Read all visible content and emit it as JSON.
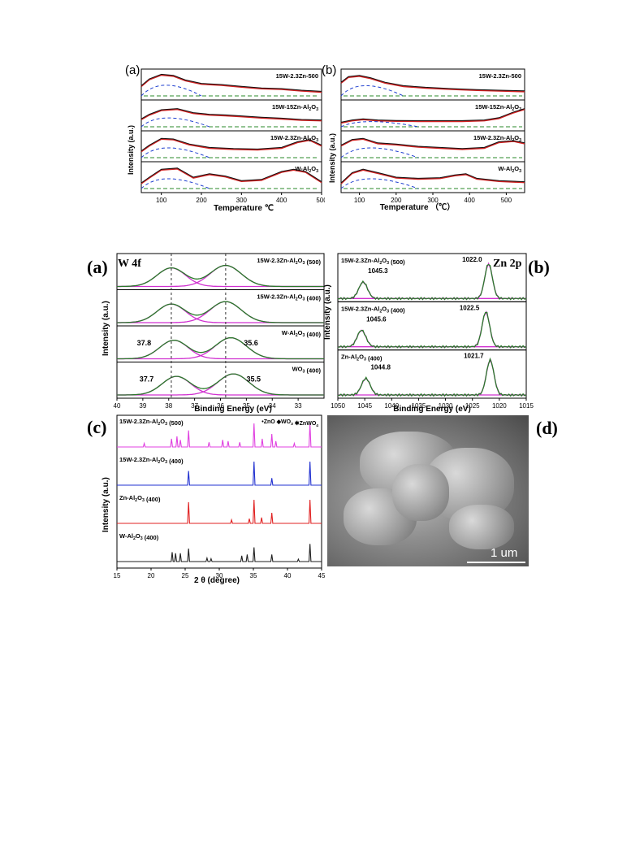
{
  "chart_data": [
    {
      "type": "line",
      "panel": "(a)",
      "xlabel": "Temperature ℃",
      "ylabel": "Intensity (a.u.)",
      "xlim": [
        50,
        500
      ],
      "xticks": [
        "100",
        "200",
        "300",
        "400",
        "500"
      ],
      "series": [
        {
          "name": "15W-2.3Zn-500",
          "x": [
            50,
            70,
            100,
            130,
            160,
            200,
            250,
            300,
            350,
            400,
            450,
            500
          ],
          "y": [
            0.45,
            0.75,
            0.95,
            0.9,
            0.7,
            0.55,
            0.5,
            0.42,
            0.35,
            0.32,
            0.25,
            0.2
          ]
        },
        {
          "name": "15W-15Zn-Al2O3",
          "x": [
            50,
            70,
            100,
            140,
            180,
            220,
            260,
            300,
            350,
            400,
            450,
            500
          ],
          "y": [
            0.35,
            0.55,
            0.75,
            0.8,
            0.62,
            0.55,
            0.52,
            0.48,
            0.42,
            0.38,
            0.32,
            0.3
          ]
        },
        {
          "name": "15W-2.3Zn-Al2O3",
          "x": [
            50,
            70,
            100,
            130,
            170,
            220,
            280,
            340,
            400,
            440,
            470,
            500
          ],
          "y": [
            0.3,
            0.55,
            0.85,
            0.82,
            0.6,
            0.45,
            0.4,
            0.38,
            0.45,
            0.7,
            0.8,
            0.55
          ]
        },
        {
          "name": "W-Al2O3",
          "x": [
            50,
            70,
            100,
            140,
            180,
            220,
            260,
            300,
            350,
            400,
            430,
            460,
            500
          ],
          "y": [
            0.25,
            0.5,
            0.85,
            0.9,
            0.5,
            0.65,
            0.55,
            0.35,
            0.4,
            0.75,
            0.85,
            0.75,
            0.3
          ]
        }
      ]
    },
    {
      "type": "line",
      "panel": "(b)",
      "xlabel": "Temperature （℃）",
      "ylabel": "Intensity (a.u.)",
      "xlim": [
        50,
        550
      ],
      "xticks": [
        "100",
        "200",
        "300",
        "400",
        "500"
      ],
      "series": [
        {
          "name": "15W-2.3Zn-500",
          "x": [
            50,
            70,
            100,
            130,
            170,
            220,
            280,
            350,
            420,
            480,
            550
          ],
          "y": [
            0.6,
            0.85,
            0.9,
            0.8,
            0.6,
            0.45,
            0.38,
            0.32,
            0.28,
            0.25,
            0.22
          ]
        },
        {
          "name": "15W-15Zn-Al2O3",
          "x": [
            50,
            80,
            110,
            150,
            200,
            260,
            320,
            380,
            440,
            480,
            520,
            550
          ],
          "y": [
            0.2,
            0.3,
            0.35,
            0.3,
            0.28,
            0.27,
            0.27,
            0.27,
            0.3,
            0.4,
            0.65,
            0.8
          ]
        },
        {
          "name": "15W-2.3Zn-Al2O3",
          "x": [
            50,
            80,
            110,
            150,
            200,
            260,
            320,
            380,
            440,
            480,
            520,
            550
          ],
          "y": [
            0.55,
            0.8,
            0.85,
            0.65,
            0.6,
            0.5,
            0.45,
            0.4,
            0.45,
            0.7,
            0.75,
            0.65
          ]
        },
        {
          "name": "W-Al2O3",
          "x": [
            50,
            80,
            110,
            150,
            200,
            260,
            320,
            360,
            390,
            420,
            480,
            550
          ],
          "y": [
            0.25,
            0.7,
            0.85,
            0.7,
            0.5,
            0.45,
            0.48,
            0.6,
            0.65,
            0.45,
            0.35,
            0.3
          ]
        }
      ]
    },
    {
      "type": "line",
      "panel": "(a)",
      "title": "W 4f",
      "xlabel": "Binding Energy (eV)",
      "ylabel": "Intensity (a.u.)",
      "xlim": [
        40,
        32
      ],
      "xticks": [
        "40",
        "39",
        "38",
        "37",
        "36",
        "35",
        "34",
        "33"
      ],
      "series": [
        {
          "name": "15W-2.3Zn-Al2O3 (500)",
          "peaks": [
            37.9,
            35.8
          ]
        },
        {
          "name": "15W-2.3Zn-Al2O3 (400)",
          "peaks": [
            37.9,
            35.8
          ]
        },
        {
          "name": "W-Al2O3 (400)",
          "peaks": [
            37.8,
            35.6
          ]
        },
        {
          "name": "WO3 (400)",
          "peaks": [
            37.7,
            35.5
          ]
        }
      ],
      "annotations": [
        "37.8",
        "35.6",
        "37.7",
        "35.5"
      ]
    },
    {
      "type": "line",
      "panel": "(b)",
      "title": "Zn 2p",
      "xlabel": "Binding Energy (eV)",
      "ylabel": "Intensity (a.u.)",
      "xlim": [
        1050,
        1015
      ],
      "xticks": [
        "1050",
        "1045",
        "1040",
        "1035",
        "1030",
        "1025",
        "1020",
        "1015"
      ],
      "series": [
        {
          "name": "15W-2.3Zn-Al2O3 (500)",
          "peaks": [
            1045.3,
            1022.0
          ]
        },
        {
          "name": "15W-2.3Zn-Al2O3 (400)",
          "peaks": [
            1045.6,
            1022.5
          ]
        },
        {
          "name": "Zn-Al2O3 (400)",
          "peaks": [
            1044.8,
            1021.7
          ]
        }
      ],
      "annotations": [
        "1022.0",
        "1045.3",
        "1022.5",
        "1045.6",
        "1021.7",
        "1044.8"
      ]
    },
    {
      "type": "line",
      "panel": "(c)",
      "xlabel": "2 θ (degree)",
      "ylabel": "Intensity (a.u.)",
      "xlim": [
        15,
        45
      ],
      "xticks": [
        "15",
        "20",
        "25",
        "30",
        "35",
        "40",
        "45"
      ],
      "legend": [
        "ZnO",
        "WO3",
        "ZnWO4"
      ],
      "series": [
        {
          "name": "15W-2.3Zn-Al2O3 (500)",
          "color": "#e040e0",
          "peaks": [
            [
              19,
              0.15
            ],
            [
              23,
              0.35
            ],
            [
              23.8,
              0.45
            ],
            [
              24.3,
              0.3
            ],
            [
              25.5,
              0.7
            ],
            [
              28.5,
              0.2
            ],
            [
              30.5,
              0.3
            ],
            [
              31.3,
              0.25
            ],
            [
              33,
              0.2
            ],
            [
              35.1,
              1.0
            ],
            [
              36.3,
              0.35
            ],
            [
              37.7,
              0.55
            ],
            [
              38.3,
              0.25
            ],
            [
              41,
              0.15
            ],
            [
              43.3,
              1.0
            ]
          ]
        },
        {
          "name": "15W-2.3Zn-Al2O3 (400)",
          "color": "#2030d0",
          "peaks": [
            [
              25.5,
              0.6
            ],
            [
              35.1,
              1.0
            ],
            [
              37.7,
              0.3
            ],
            [
              43.3,
              1.0
            ]
          ]
        },
        {
          "name": "Zn-Al2O3 (400)",
          "color": "#e02020",
          "peaks": [
            [
              25.5,
              0.9
            ],
            [
              31.8,
              0.15
            ],
            [
              34.4,
              0.2
            ],
            [
              35.1,
              1.0
            ],
            [
              36.2,
              0.25
            ],
            [
              37.7,
              0.45
            ],
            [
              43.3,
              1.0
            ]
          ]
        },
        {
          "name": "W-Al2O3 (400)",
          "color": "#202020",
          "peaks": [
            [
              23.1,
              0.4
            ],
            [
              23.6,
              0.35
            ],
            [
              24.3,
              0.35
            ],
            [
              25.5,
              0.55
            ],
            [
              28.2,
              0.15
            ],
            [
              28.8,
              0.12
            ],
            [
              33.3,
              0.25
            ],
            [
              34.1,
              0.3
            ],
            [
              35.1,
              0.6
            ],
            [
              37.7,
              0.3
            ],
            [
              41.6,
              0.1
            ],
            [
              43.3,
              0.75
            ]
          ]
        }
      ]
    }
  ],
  "panel_labels": {
    "top_a": "(a)",
    "top_b": "(b)",
    "mid_a": "(a)",
    "mid_b": "(b)",
    "bottom_c": "(c)",
    "bottom_d": "(d)"
  },
  "sem": {
    "scale_label": "1 um"
  }
}
